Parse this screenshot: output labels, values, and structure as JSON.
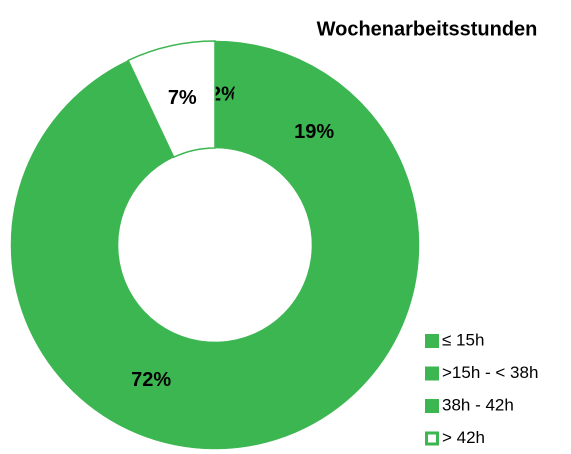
{
  "chart_data": {
    "type": "donut",
    "title": "Wochenarbeitsstunden",
    "categories": [
      "≤ 15h",
      ">15h - < 38h",
      "38h - 42h",
      "> 42h"
    ],
    "values": [
      2,
      19,
      72,
      7
    ],
    "value_labels": [
      "2%",
      "19%",
      "72%",
      "7%"
    ],
    "colors": [
      "#3cb651",
      "#3cb651",
      "#3cb651",
      "#ffffff"
    ],
    "outline": "#3cb651",
    "legend": "bottom-right"
  }
}
